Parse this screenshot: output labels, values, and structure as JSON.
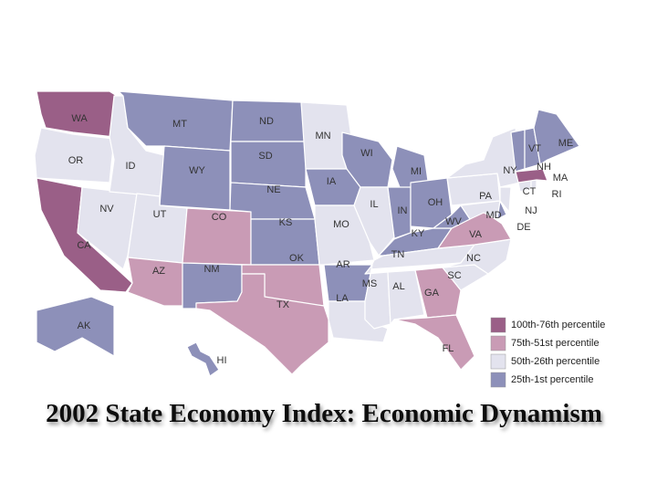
{
  "title": "2002 State Economy Index: Economic Dynamism",
  "legend": [
    {
      "label": "100th-76th percentile",
      "color": "#9a5f87"
    },
    {
      "label": "75th-51st percentile",
      "color": "#c99bb5"
    },
    {
      "label": "50th-26th percentile",
      "color": "#e3e3ee"
    },
    {
      "label": "25th-1st percentile",
      "color": "#8d90b9"
    }
  ],
  "states": [
    {
      "code": "WA",
      "group": 0
    },
    {
      "code": "OR",
      "group": 2
    },
    {
      "code": "CA",
      "group": 0
    },
    {
      "code": "NV",
      "group": 2
    },
    {
      "code": "ID",
      "group": 2
    },
    {
      "code": "MT",
      "group": 3
    },
    {
      "code": "WY",
      "group": 3
    },
    {
      "code": "UT",
      "group": 2
    },
    {
      "code": "CO",
      "group": 1
    },
    {
      "code": "AZ",
      "group": 1
    },
    {
      "code": "NM",
      "group": 3
    },
    {
      "code": "ND",
      "group": 3
    },
    {
      "code": "SD",
      "group": 3
    },
    {
      "code": "NE",
      "group": 3
    },
    {
      "code": "KS",
      "group": 3
    },
    {
      "code": "OK",
      "group": 1
    },
    {
      "code": "TX",
      "group": 1
    },
    {
      "code": "MN",
      "group": 2
    },
    {
      "code": "IA",
      "group": 3
    },
    {
      "code": "MO",
      "group": 2
    },
    {
      "code": "AR",
      "group": 3
    },
    {
      "code": "LA",
      "group": 2
    },
    {
      "code": "WI",
      "group": 3
    },
    {
      "code": "IL",
      "group": 2
    },
    {
      "code": "MI",
      "group": 3
    },
    {
      "code": "IN",
      "group": 3
    },
    {
      "code": "OH",
      "group": 3
    },
    {
      "code": "KY",
      "group": 3
    },
    {
      "code": "TN",
      "group": 2
    },
    {
      "code": "MS",
      "group": 2
    },
    {
      "code": "AL",
      "group": 2
    },
    {
      "code": "GA",
      "group": 1
    },
    {
      "code": "FL",
      "group": 1
    },
    {
      "code": "SC",
      "group": 2
    },
    {
      "code": "NC",
      "group": 2
    },
    {
      "code": "VA",
      "group": 1
    },
    {
      "code": "WV",
      "group": 3
    },
    {
      "code": "PA",
      "group": 2
    },
    {
      "code": "NY",
      "group": 2
    },
    {
      "code": "MD",
      "group": 2
    },
    {
      "code": "DE",
      "group": 3
    },
    {
      "code": "NJ",
      "group": 2
    },
    {
      "code": "CT",
      "group": 2
    },
    {
      "code": "RI",
      "group": 2
    },
    {
      "code": "MA",
      "group": 0
    },
    {
      "code": "VT",
      "group": 3
    },
    {
      "code": "NH",
      "group": 3
    },
    {
      "code": "ME",
      "group": 3
    },
    {
      "code": "AK",
      "group": 3
    },
    {
      "code": "HI",
      "group": 3
    }
  ]
}
